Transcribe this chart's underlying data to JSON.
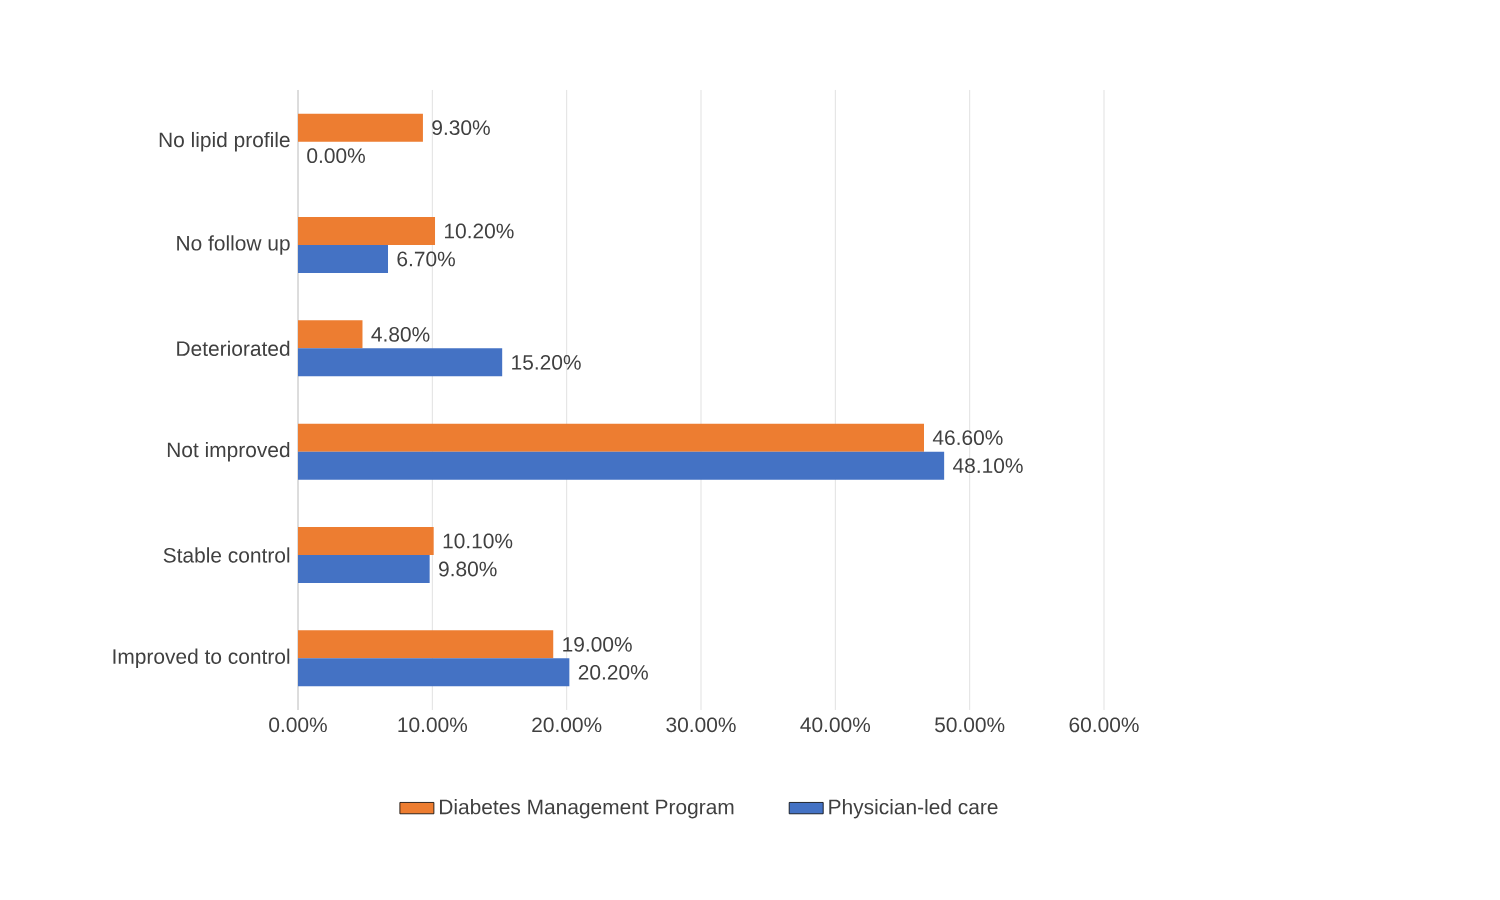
{
  "chart_data": {
    "type": "bar",
    "orientation": "horizontal",
    "categories": [
      "No lipid profile",
      "No follow up",
      "Deteriorated",
      "Not improved",
      "Stable control",
      "Improved to control"
    ],
    "series": [
      {
        "name": "Diabetes Management Program",
        "color": "#ed7d31",
        "values": [
          9.3,
          10.2,
          4.8,
          46.6,
          10.1,
          19.0
        ],
        "value_labels": [
          "9.30%",
          "10.20%",
          "4.80%",
          "46.60%",
          "10.10%",
          "19.00%"
        ]
      },
      {
        "name": "Physician-led care",
        "color": "#4472c4",
        "values": [
          0.0,
          6.7,
          15.2,
          48.1,
          9.8,
          20.2
        ],
        "value_labels": [
          "0.00%",
          "6.70%",
          "15.20%",
          "48.10%",
          "9.80%",
          "20.20%"
        ]
      }
    ],
    "xlim": [
      0,
      60
    ],
    "xticks": [
      {
        "value": 0,
        "label": "0.00%"
      },
      {
        "value": 10,
        "label": "10.00%"
      },
      {
        "value": 20,
        "label": "20.00%"
      },
      {
        "value": 30,
        "label": "30.00%"
      },
      {
        "value": 40,
        "label": "40.00%"
      },
      {
        "value": 50,
        "label": "50.00%"
      },
      {
        "value": 60,
        "label": "60.00%"
      }
    ],
    "grid": "x",
    "legend": "bottom"
  }
}
